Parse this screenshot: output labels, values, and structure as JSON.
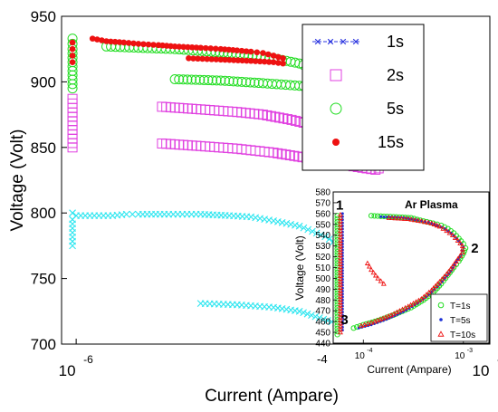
{
  "colors": {
    "series_1s": "#2b35e0",
    "series_2s": "#e040e0",
    "series_5s": "#22dd22",
    "series_15s": "#ee1111",
    "cyan": "#2ee6f0",
    "inset_5s": "#1a2fd6"
  },
  "chart_data": [
    {
      "type": "scatter",
      "title": "",
      "xlabel": "Current (Ampare)",
      "ylabel": "Voltage (Volt)",
      "xscale": "log",
      "xlim": [
        8.5e-07,
        0.0001
      ],
      "ylim": [
        700,
        950
      ],
      "x_tick_labels": [
        {
          "x": 1e-06,
          "base": "10",
          "exp": "-6"
        },
        {
          "x": 0.0001,
          "base": "10",
          "exp": "-4"
        }
      ],
      "y_ticks": [
        700,
        750,
        800,
        850,
        900,
        950
      ],
      "grid": false,
      "legend": {
        "placement": "top-right",
        "entries": [
          {
            "label": "1s",
            "marker": "x-line",
            "color": "#2b35e0"
          },
          {
            "label": "2s",
            "marker": "square",
            "color": "#e040e0"
          },
          {
            "label": "5s",
            "marker": "circle",
            "color": "#22dd22"
          },
          {
            "label": "15s",
            "marker": "dot",
            "color": "#ee1111"
          }
        ]
      },
      "series": [
        {
          "name": "1s",
          "marker": "x",
          "color": "#2ee6f0",
          "segments": [
            [
              [
                9.6e-07,
                775
              ],
              [
                9.6e-07,
                785
              ],
              [
                9.6e-07,
                795
              ],
              [
                9.6e-07,
                800
              ]
            ],
            [
              [
                1e-06,
                798
              ],
              [
                1.5e-06,
                798
              ],
              [
                1.75e-06,
                799
              ],
              [
                2e-06,
                799
              ],
              [
                2.8e-06,
                799
              ],
              [
                4e-06,
                799
              ],
              [
                5.5e-06,
                798
              ],
              [
                7e-06,
                797
              ],
              [
                9e-06,
                794
              ],
              [
                1.2e-05,
                790
              ],
              [
                1.6e-05,
                782
              ],
              [
                2e-05,
                772
              ],
              [
                2.3e-05,
                762
              ],
              [
                2.5e-05,
                751
              ],
              [
                2.55e-05,
                740
              ],
              [
                2.5e-05,
                728
              ],
              [
                2.35e-05,
                717
              ],
              [
                2.2e-05,
                708
              ]
            ],
            [
              [
                4e-06,
                731
              ],
              [
                6e-06,
                730
              ],
              [
                9e-06,
                728
              ],
              [
                1.2e-05,
                725
              ],
              [
                1.5e-05,
                720
              ],
              [
                1.8e-05,
                716
              ],
              [
                2.1e-05,
                711
              ],
              [
                2.2e-05,
                708
              ]
            ]
          ]
        },
        {
          "name": "2s",
          "marker": "square",
          "color": "#e040e0",
          "segments": [
            [
              [
                9.6e-07,
                850
              ],
              [
                9.6e-07,
                860
              ],
              [
                9.6e-07,
                870
              ],
              [
                9.6e-07,
                880
              ],
              [
                9.6e-07,
                887
              ]
            ],
            [
              [
                2.6e-06,
                881
              ],
              [
                4e-06,
                879
              ],
              [
                6e-06,
                877
              ],
              [
                8e-06,
                875
              ],
              [
                1.1e-05,
                871
              ],
              [
                1.5e-05,
                866
              ],
              [
                1.9e-05,
                860
              ],
              [
                2.3e-05,
                853
              ],
              [
                2.6e-05,
                845
              ],
              [
                2.8e-05,
                838
              ],
              [
                2.9e-05,
                834
              ]
            ],
            [
              [
                2.6e-06,
                853
              ],
              [
                4e-06,
                851
              ],
              [
                6e-06,
                849
              ],
              [
                9e-06,
                846
              ],
              [
                1.3e-05,
                842
              ],
              [
                1.8e-05,
                838
              ],
              [
                2.3e-05,
                835
              ],
              [
                2.8e-05,
                833
              ]
            ]
          ]
        },
        {
          "name": "5s",
          "marker": "circle",
          "color": "#22dd22",
          "segments": [
            [
              [
                9.6e-07,
                895
              ],
              [
                9.6e-07,
                905
              ],
              [
                9.6e-07,
                915
              ],
              [
                9.6e-07,
                925
              ],
              [
                9.6e-07,
                933
              ]
            ],
            [
              [
                1.4e-06,
                927
              ],
              [
                2e-06,
                926
              ],
              [
                3e-06,
                925
              ],
              [
                4.5e-06,
                923
              ],
              [
                6.5e-06,
                921
              ],
              [
                9e-06,
                918
              ],
              [
                1.2e-05,
                914
              ],
              [
                1.5e-05,
                909
              ],
              [
                1.8e-05,
                903
              ],
              [
                2e-05,
                897
              ],
              [
                2.1e-05,
                893
              ]
            ],
            [
              [
                3e-06,
                902
              ],
              [
                5e-06,
                901
              ],
              [
                8e-06,
                899
              ],
              [
                1.2e-05,
                897
              ],
              [
                1.6e-05,
                895
              ],
              [
                2e-05,
                894
              ]
            ]
          ]
        },
        {
          "name": "15s",
          "marker": "dot",
          "color": "#ee1111",
          "segments": [
            [
              [
                9.6e-07,
                915
              ],
              [
                9.6e-07,
                920
              ],
              [
                9.6e-07,
                925
              ],
              [
                9.6e-07,
                930
              ]
            ],
            [
              [
                1.2e-06,
                933
              ],
              [
                1.4e-06,
                931
              ],
              [
                1.7e-06,
                930
              ],
              [
                2e-06,
                929
              ],
              [
                2.5e-06,
                928
              ],
              [
                3e-06,
                927
              ],
              [
                4e-06,
                926
              ],
              [
                5e-06,
                925
              ],
              [
                6e-06,
                924
              ],
              [
                7e-06,
                923
              ],
              [
                8e-06,
                922
              ],
              [
                9e-06,
                920
              ],
              [
                1e-05,
                918
              ]
            ],
            [
              [
                3.5e-06,
                918
              ],
              [
                5e-06,
                917
              ],
              [
                7e-06,
                916
              ],
              [
                9e-06,
                915
              ],
              [
                1e-05,
                914
              ]
            ]
          ]
        }
      ]
    },
    {
      "type": "scatter",
      "title": "Ar Plasma",
      "xlabel": "Current (Ampare)",
      "ylabel": "Voltage (Volt)",
      "xscale": "log",
      "xlim": [
        5e-05,
        0.0018
      ],
      "ylim": [
        440,
        580
      ],
      "x_tick_labels": [
        {
          "x": 0.0001,
          "base": "10",
          "exp": "-4"
        },
        {
          "x": 0.001,
          "base": "10",
          "exp": "-3"
        }
      ],
      "corner_exponent": "-4",
      "y_ticks": [
        440,
        450,
        460,
        470,
        480,
        490,
        500,
        510,
        520,
        530,
        540,
        550,
        560,
        570,
        580
      ],
      "grid": false,
      "point_annotations": [
        {
          "label": "1",
          "x": 5.8e-05,
          "y": 568
        },
        {
          "label": "2",
          "x": 0.0013,
          "y": 528
        },
        {
          "label": "3",
          "x": 6.5e-05,
          "y": 462
        }
      ],
      "legend": {
        "placement": "bottom-right",
        "entries": [
          {
            "label": "T=1s",
            "marker": "circle",
            "color": "#22dd22"
          },
          {
            "label": "T=5s",
            "marker": "dot",
            "color": "#1a2fd6"
          },
          {
            "label": "T=10s",
            "marker": "triangle",
            "color": "#ee1111"
          }
        ]
      },
      "series": [
        {
          "name": "T=1s",
          "marker": "circle",
          "color": "#22dd22",
          "segments": [
            [
              [
                5.5e-05,
                448
              ],
              [
                5.5e-05,
                470
              ],
              [
                5.5e-05,
                500
              ],
              [
                5.5e-05,
                530
              ],
              [
                5.5e-05,
                558
              ]
            ],
            [
              [
                0.00012,
                558
              ],
              [
                0.0002,
                557
              ],
              [
                0.0003,
                556
              ],
              [
                0.0004,
                553
              ],
              [
                0.0005,
                551
              ],
              [
                0.0006,
                549
              ],
              [
                0.0007,
                546
              ],
              [
                0.0008,
                542
              ],
              [
                0.0009,
                537
              ],
              [
                0.001,
                532
              ],
              [
                0.00105,
                528
              ],
              [
                0.001,
                523
              ],
              [
                0.0009,
                516
              ],
              [
                0.0008,
                510
              ],
              [
                0.0007,
                503
              ],
              [
                0.0006,
                495
              ],
              [
                0.0005,
                487
              ],
              [
                0.0004,
                480
              ],
              [
                0.0003,
                473
              ],
              [
                0.0002,
                466
              ],
              [
                0.00013,
                460
              ],
              [
                0.0001,
                457
              ],
              [
                8e-05,
                454
              ]
            ]
          ]
        },
        {
          "name": "T=5s",
          "marker": "dot",
          "color": "#1a2fd6",
          "segments": [
            [
              [
                6.2e-05,
                452
              ],
              [
                6.2e-05,
                480
              ],
              [
                6.2e-05,
                510
              ],
              [
                6.2e-05,
                540
              ],
              [
                6.2e-05,
                560
              ]
            ],
            [
              [
                0.00015,
                557
              ],
              [
                0.00025,
                556
              ],
              [
                0.00035,
                554
              ],
              [
                0.00045,
                552
              ],
              [
                0.00055,
                549
              ],
              [
                0.00065,
                546
              ],
              [
                0.00075,
                542
              ],
              [
                0.00085,
                537
              ],
              [
                0.00095,
                532
              ],
              [
                0.001,
                529
              ],
              [
                0.00095,
                522
              ],
              [
                0.00085,
                515
              ],
              [
                0.00075,
                507
              ],
              [
                0.00065,
                500
              ],
              [
                0.00055,
                492
              ],
              [
                0.00045,
                485
              ],
              [
                0.00035,
                477
              ],
              [
                0.00025,
                469
              ],
              [
                0.00017,
                462
              ],
              [
                0.00012,
                457
              ],
              [
                9e-05,
                454
              ]
            ]
          ]
        },
        {
          "name": "T=10s",
          "marker": "triangle",
          "color": "#ee1111",
          "segments": [
            [
              [
                5.9e-05,
                450
              ],
              [
                5.9e-05,
                475
              ],
              [
                5.9e-05,
                505
              ],
              [
                5.9e-05,
                535
              ],
              [
                5.9e-05,
                559
              ]
            ],
            [
              [
                0.00011,
                514
              ],
              [
                0.00012,
                508
              ],
              [
                0.00014,
                500
              ],
              [
                0.00016,
                495
              ]
            ],
            [
              [
                0.00018,
                556
              ],
              [
                0.00028,
                555
              ],
              [
                0.00038,
                553
              ],
              [
                0.00048,
                551
              ],
              [
                0.00058,
                548
              ],
              [
                0.00068,
                544
              ],
              [
                0.00078,
                540
              ],
              [
                0.00088,
                535
              ],
              [
                0.00098,
                530
              ],
              [
                0.00098,
                524
              ],
              [
                0.00088,
                518
              ],
              [
                0.00078,
                511
              ],
              [
                0.00068,
                504
              ],
              [
                0.00058,
                497
              ],
              [
                0.00048,
                489
              ],
              [
                0.00038,
                481
              ],
              [
                0.00028,
                474
              ],
              [
                0.00019,
                466
              ],
              [
                0.00013,
                460
              ],
              [
                9.5e-05,
                456
              ]
            ]
          ]
        }
      ]
    }
  ]
}
